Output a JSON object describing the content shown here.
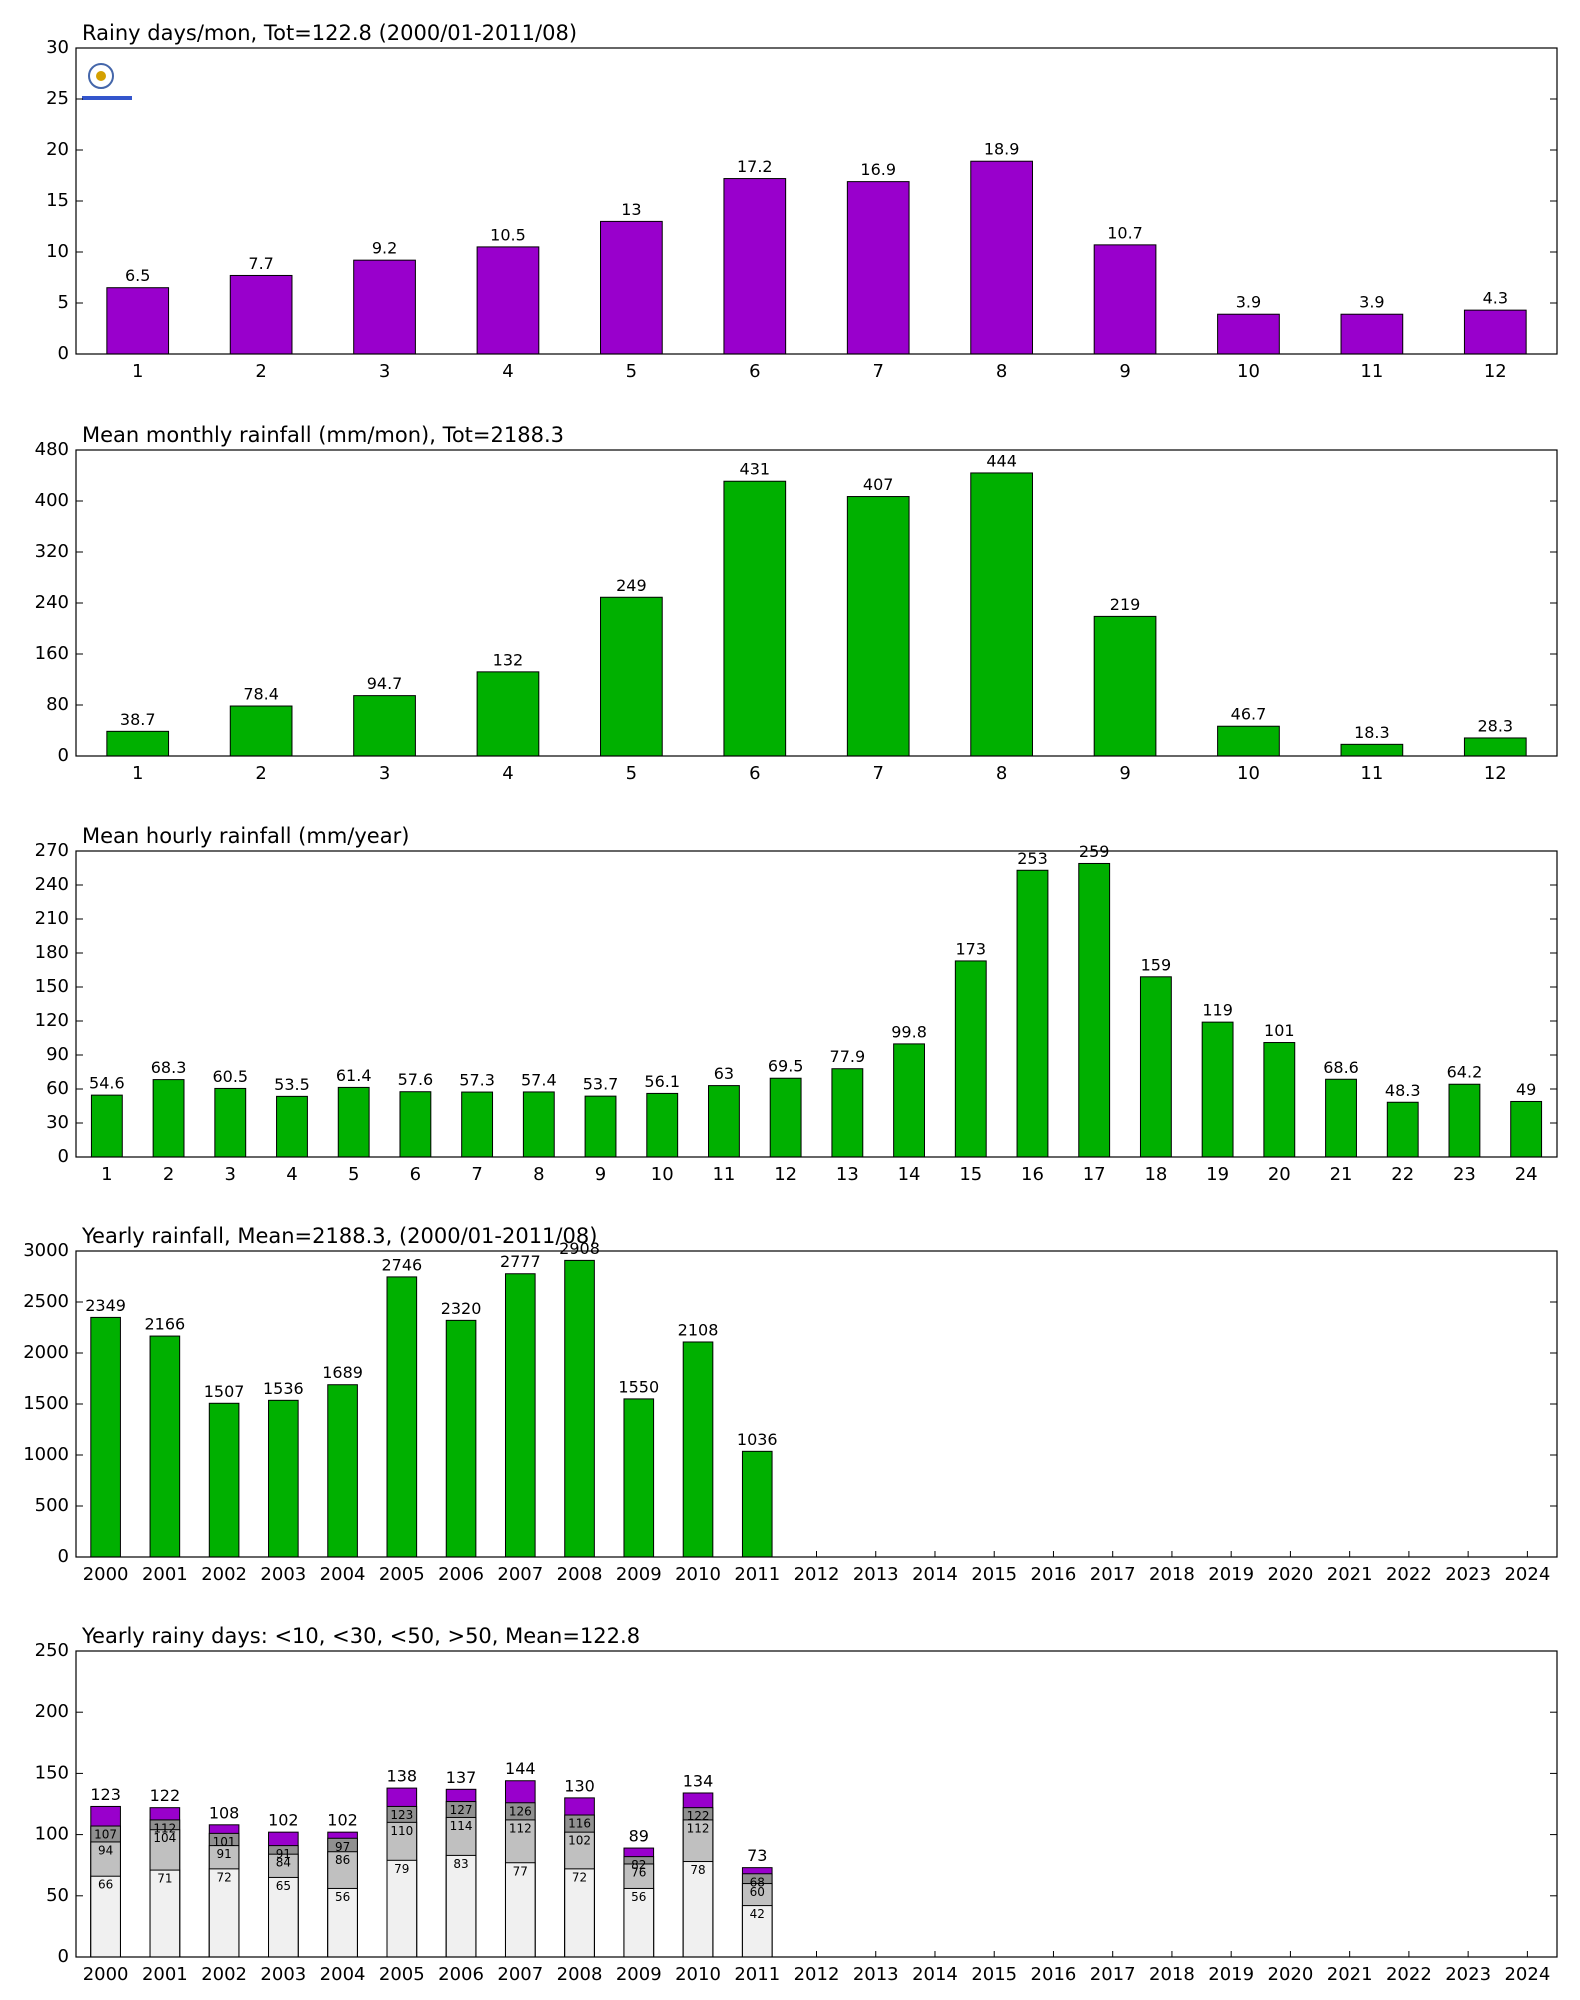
{
  "chart_data": [
    {
      "type": "bar",
      "title": "Rainy days/mon, Tot=122.8 (2000/01-2011/08)",
      "categories": [
        "1",
        "2",
        "3",
        "4",
        "5",
        "6",
        "7",
        "8",
        "9",
        "10",
        "11",
        "12"
      ],
      "values": [
        6.5,
        7.7,
        9.2,
        10.5,
        13,
        17.2,
        16.9,
        18.9,
        10.7,
        3.9,
        3.9,
        4.3
      ],
      "color": "#9900cc",
      "ylim": [
        0,
        30
      ],
      "yticks": [
        0,
        5,
        10,
        15,
        20,
        25,
        30
      ],
      "grid": false
    },
    {
      "type": "bar",
      "title": "Mean monthly rainfall (mm/mon), Tot=2188.3",
      "categories": [
        "1",
        "2",
        "3",
        "4",
        "5",
        "6",
        "7",
        "8",
        "9",
        "10",
        "11",
        "12"
      ],
      "values": [
        38.7,
        78.4,
        94.7,
        132,
        249,
        431,
        407,
        444,
        219,
        46.7,
        18.3,
        28.3
      ],
      "color": "#00b000",
      "ylim": [
        0,
        480
      ],
      "yticks": [
        0,
        80,
        160,
        240,
        320,
        400,
        480
      ],
      "grid": false
    },
    {
      "type": "bar",
      "title": "Mean hourly rainfall (mm/year)",
      "categories": [
        "1",
        "2",
        "3",
        "4",
        "5",
        "6",
        "7",
        "8",
        "9",
        "10",
        "11",
        "12",
        "13",
        "14",
        "15",
        "16",
        "17",
        "18",
        "19",
        "20",
        "21",
        "22",
        "23",
        "24"
      ],
      "values": [
        54.6,
        68.3,
        60.5,
        53.5,
        61.4,
        57.6,
        57.3,
        57.4,
        53.7,
        56.1,
        63,
        69.5,
        77.9,
        99.8,
        173,
        253,
        259,
        159,
        119,
        101,
        68.6,
        48.3,
        64.2,
        49
      ],
      "color": "#00b000",
      "ylim": [
        0,
        270
      ],
      "yticks": [
        0,
        30,
        60,
        90,
        120,
        150,
        180,
        210,
        240,
        270
      ],
      "grid": false
    },
    {
      "type": "bar",
      "title": "Yearly rainfall, Mean=2188.3, (2000/01-2011/08)",
      "categories": [
        "2000",
        "2001",
        "2002",
        "2003",
        "2004",
        "2005",
        "2006",
        "2007",
        "2008",
        "2009",
        "2010",
        "2011",
        "2012",
        "2013",
        "2014",
        "2015",
        "2016",
        "2017",
        "2018",
        "2019",
        "2020",
        "2021",
        "2022",
        "2023",
        "2024"
      ],
      "values": [
        2349,
        2166,
        1507,
        1536,
        1689,
        2746,
        2320,
        2777,
        2908,
        1550,
        2108,
        1036,
        null,
        null,
        null,
        null,
        null,
        null,
        null,
        null,
        null,
        null,
        null,
        null,
        null
      ],
      "color": "#00b000",
      "ylim": [
        0,
        3000
      ],
      "yticks": [
        0,
        500,
        1000,
        1500,
        2000,
        2500,
        3000
      ],
      "grid": false
    },
    {
      "type": "bar",
      "title": "Yearly rainy days: <10, <30, <50, >50, Mean=122.8",
      "categories": [
        "2000",
        "2001",
        "2002",
        "2003",
        "2004",
        "2005",
        "2006",
        "2007",
        "2008",
        "2009",
        "2010",
        "2011",
        "2012",
        "2013",
        "2014",
        "2015",
        "2016",
        "2017",
        "2018",
        "2019",
        "2020",
        "2021",
        "2022",
        "2023",
        "2024"
      ],
      "series": [
        {
          "color": "#f0f0f0",
          "values": [
            66,
            71,
            72,
            65,
            56,
            79,
            83,
            77,
            72,
            56,
            78,
            42,
            null,
            null,
            null,
            null,
            null,
            null,
            null,
            null,
            null,
            null,
            null,
            null,
            null
          ]
        },
        {
          "color": "#c0c0c0",
          "values": [
            94,
            104,
            91,
            84,
            86,
            110,
            114,
            112,
            102,
            76,
            112,
            60,
            null,
            null,
            null,
            null,
            null,
            null,
            null,
            null,
            null,
            null,
            null,
            null,
            null
          ]
        },
        {
          "color": "#909090",
          "values": [
            107,
            112,
            101,
            91,
            97,
            123,
            127,
            126,
            116,
            82,
            122,
            68,
            null,
            null,
            null,
            null,
            null,
            null,
            null,
            null,
            null,
            null,
            null,
            null,
            null
          ]
        },
        {
          "color": "#9900cc",
          "values": [
            123,
            122,
            108,
            102,
            102,
            138,
            137,
            144,
            130,
            89,
            134,
            73,
            null,
            null,
            null,
            null,
            null,
            null,
            null,
            null,
            null,
            null,
            null,
            null,
            null
          ]
        }
      ],
      "ylim": [
        0,
        250
      ],
      "yticks": [
        0,
        50,
        100,
        150,
        200,
        250
      ],
      "grid": false
    }
  ]
}
